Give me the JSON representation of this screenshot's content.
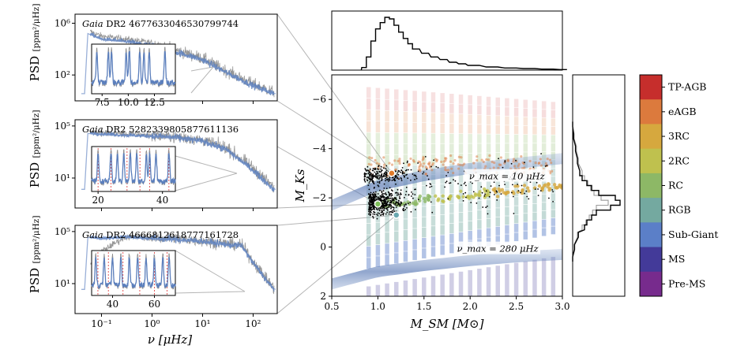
{
  "chart_data": [
    {
      "type": "line",
      "panel": "psd-1",
      "title_prefix": "Gaia",
      "title": "DR2 4677633046530799744",
      "ylabel": "PSD",
      "yunit": "[ppm²/μHz]",
      "xscale": "log",
      "yscale": "log",
      "xlim": [
        0.03,
        300
      ],
      "ylim": [
        1,
        5000000
      ],
      "xticks": [],
      "yticks": [
        "10⁶",
        "10²"
      ],
      "series": [
        {
          "color": "#8c8c8c",
          "x": [
            0.05,
            0.1,
            0.3,
            1,
            3,
            10,
            30,
            100,
            250
          ],
          "y": [
            300000,
            100000,
            60000,
            30000,
            8000,
            2000,
            200,
            20,
            5
          ]
        },
        {
          "color": "#5b7fbd",
          "x": [
            0.05,
            0.1,
            0.3,
            1,
            3,
            10,
            30,
            100,
            250
          ],
          "y": [
            200000,
            60000,
            40000,
            20000,
            6000,
            1500,
            150,
            15,
            4
          ]
        }
      ],
      "inset": {
        "xlim": [
          6.5,
          14.5
        ],
        "xticks": [
          "7.5",
          "10.0",
          "12.5"
        ],
        "peaks": [
          7.0,
          8.1,
          8.4,
          9.8,
          10.1,
          11.1,
          11.5,
          12.0,
          13.5
        ]
      }
    },
    {
      "type": "line",
      "panel": "psd-2",
      "title_prefix": "Gaia",
      "title": "DR2 5282339805877611136",
      "ylabel": "PSD",
      "yunit": "[ppm²/μHz]",
      "xscale": "log",
      "yscale": "log",
      "xlim": [
        0.03,
        300
      ],
      "ylim": [
        0.05,
        300000
      ],
      "xticks": [],
      "yticks": [
        "10⁵",
        "10¹"
      ],
      "series": [
        {
          "color": "#8c8c8c",
          "x": [
            0.05,
            0.1,
            0.3,
            1,
            3,
            10,
            30,
            100,
            250
          ],
          "y": [
            40000,
            30000,
            25000,
            20000,
            15000,
            8000,
            2000,
            60,
            2
          ]
        },
        {
          "color": "#5b7fbd",
          "x": [
            0.05,
            0.1,
            0.3,
            1,
            3,
            10,
            30,
            100,
            250
          ],
          "y": [
            30000,
            25000,
            20000,
            17000,
            13000,
            7000,
            1500,
            40,
            1.5
          ]
        }
      ],
      "inset": {
        "xlim": [
          18,
          44
        ],
        "xticks": [
          "20",
          "40"
        ],
        "peaks": [
          20,
          24,
          26,
          28,
          30,
          32,
          35,
          36,
          38,
          42
        ],
        "modes": [
          20,
          24,
          29,
          33,
          36,
          42
        ]
      }
    },
    {
      "type": "line",
      "panel": "psd-3",
      "title_prefix": "Gaia",
      "title": "DR2 4666812618777161728",
      "ylabel": "PSD",
      "yunit": "[ppm²/μHz]",
      "xscale": "log",
      "yscale": "log",
      "xlim": [
        0.03,
        300
      ],
      "ylim": [
        0.05,
        300000
      ],
      "xticks": [
        "10⁻¹",
        "10⁰",
        "10¹",
        "10²"
      ],
      "xlabel": "ν [μHz]",
      "yticks": [
        "10⁵",
        "10¹"
      ],
      "series": [
        {
          "color": "#8c8c8c",
          "x": [
            0.05,
            0.1,
            0.3,
            1,
            3,
            10,
            30,
            60,
            100,
            250
          ],
          "y": [
            150,
            3000,
            40000,
            35000,
            30000,
            20000,
            12000,
            9000,
            500,
            5
          ]
        },
        {
          "color": "#5b7fbd",
          "x": [
            0.05,
            0.1,
            0.3,
            1,
            3,
            10,
            30,
            60,
            100,
            250
          ],
          "y": [
            40000,
            30000,
            40000,
            30000,
            25000,
            18000,
            10000,
            8000,
            400,
            4
          ]
        }
      ],
      "inset": {
        "xlim": [
          30,
          70
        ],
        "xticks": [
          "40",
          "60"
        ],
        "peaks": [
          32,
          36,
          40,
          44,
          48,
          52,
          56,
          60,
          64,
          67
        ],
        "modes": [
          33,
          38,
          45,
          53,
          60,
          66
        ]
      }
    },
    {
      "type": "scatter",
      "panel": "main",
      "xlabel": "M_SM [M⊙]",
      "ylabel": "M_Ks",
      "xlim": [
        0.5,
        3.0
      ],
      "ylim": [
        2,
        -7
      ],
      "xticks": [
        "0.5",
        "1.0",
        "1.5",
        "2.0",
        "2.5",
        "3.0"
      ],
      "yticks": [
        "−6",
        "−4",
        "−2",
        "0",
        "2"
      ],
      "annotations": [
        "ν_max = 10 μHz",
        "ν_max = 280 μHz"
      ],
      "bands": [
        {
          "label": "ν_max = 10 μHz",
          "x": [
            0.5,
            1.0,
            1.5,
            2.0,
            2.5,
            3.0
          ],
          "y": [
            -1.7,
            -2.5,
            -2.9,
            -3.2,
            -3.4,
            -3.6
          ]
        },
        {
          "label": "ν_max = 280 μHz",
          "x": [
            0.5,
            1.0,
            1.5,
            2.0,
            2.5,
            3.0
          ],
          "y": [
            1.5,
            1.0,
            0.75,
            0.55,
            0.4,
            0.3
          ]
        }
      ],
      "tracks_mass": [
        0.9,
        1.0,
        1.1,
        1.2,
        1.3,
        1.4,
        1.5,
        1.6,
        1.7,
        1.8,
        1.9,
        2.0,
        2.1,
        2.2,
        2.3,
        2.4,
        2.5,
        2.6,
        2.7,
        2.8,
        2.9
      ],
      "highlighted_stars": [
        {
          "x": 1.15,
          "y": -3.0,
          "color": "#e07a2a"
        },
        {
          "x": 1.0,
          "y": -1.75,
          "color": "#7fbf5a"
        },
        {
          "x": 1.2,
          "y": -1.3,
          "color": "#6aa8b0"
        }
      ]
    },
    {
      "type": "step",
      "panel": "top-histogram",
      "description": "Histogram of M_SM",
      "bin_centers": [
        0.85,
        0.9,
        0.95,
        1.0,
        1.05,
        1.1,
        1.15,
        1.2,
        1.25,
        1.3,
        1.35,
        1.4,
        1.5,
        1.6,
        1.7,
        1.8,
        1.9,
        2.0,
        2.2,
        2.4,
        2.6,
        2.8,
        3.0
      ],
      "counts": [
        0.05,
        0.25,
        0.55,
        0.78,
        0.9,
        1.0,
        0.97,
        0.85,
        0.72,
        0.6,
        0.5,
        0.4,
        0.32,
        0.25,
        0.2,
        0.15,
        0.12,
        0.09,
        0.06,
        0.04,
        0.03,
        0.02,
        0.01
      ]
    },
    {
      "type": "step",
      "panel": "right-histogram",
      "description": "Histogram of M_Ks",
      "bin_centers": [
        -5,
        -4.5,
        -4,
        -3.5,
        -3.0,
        -2.8,
        -2.6,
        -2.4,
        -2.2,
        -2.0,
        -1.8,
        -1.6,
        -1.4,
        -1.2,
        -1.0,
        -0.8,
        -0.5,
        0,
        0.5
      ],
      "counts": [
        0.0,
        0.02,
        0.06,
        0.1,
        0.15,
        0.2,
        0.3,
        0.4,
        0.55,
        0.9,
        1.0,
        0.8,
        0.5,
        0.4,
        0.3,
        0.25,
        0.12,
        0.04,
        0.0
      ],
      "counts_alt": [
        0.0,
        0.03,
        0.08,
        0.12,
        0.2,
        0.25,
        0.32,
        0.38,
        0.45,
        0.6,
        0.75,
        0.5,
        0.42,
        0.35,
        0.28,
        0.2,
        0.1,
        0.03,
        0.0
      ]
    },
    {
      "type": "colorbar",
      "panel": "colorbar",
      "categories": [
        "TP-AGB",
        "eAGB",
        "3RC",
        "2RC",
        "RC",
        "RGB",
        "Sub-Giant",
        "MS",
        "Pre-MS"
      ],
      "colors": [
        "#c62e2c",
        "#dc7a3d",
        "#d6a83e",
        "#bfc14e",
        "#8db866",
        "#74a9a0",
        "#5b7fc8",
        "#433a99",
        "#772b8d"
      ]
    }
  ]
}
